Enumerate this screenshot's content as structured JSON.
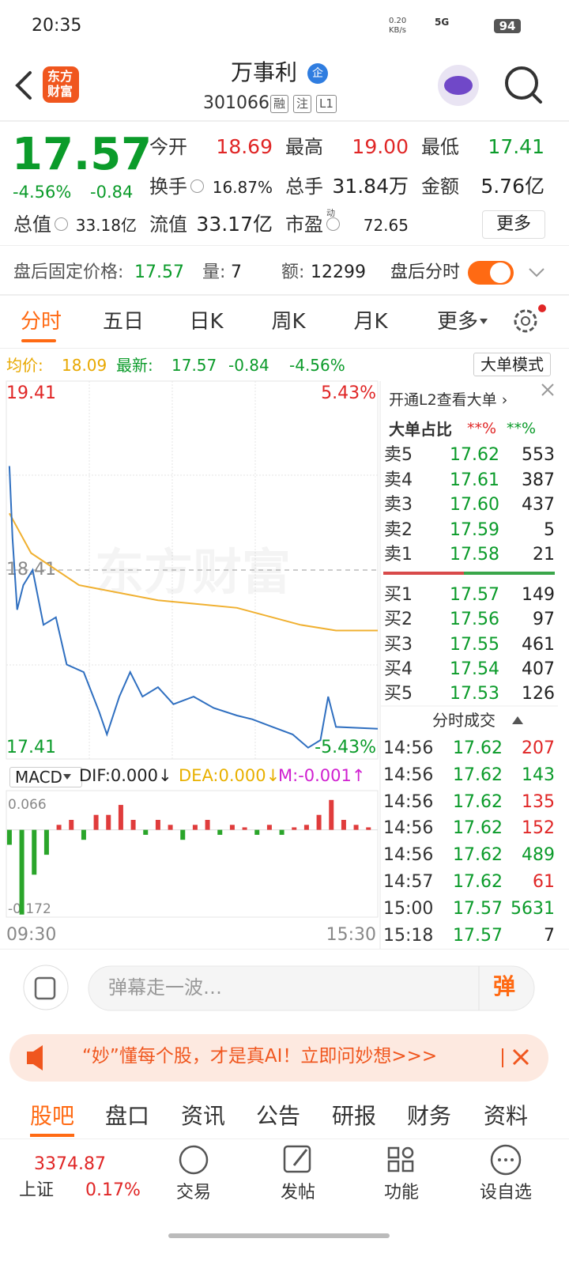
{
  "status_bar": {
    "time": "20:35",
    "net_speed": "0.20",
    "net_unit": "KB/s",
    "network": "5G",
    "battery": "94"
  },
  "header": {
    "logo_top": "东方",
    "logo_bottom": "财富",
    "title": "万事利",
    "badge": "企",
    "code": "301066",
    "tags": [
      "融",
      "注",
      "L1"
    ]
  },
  "quote": {
    "price": "17.57",
    "change_pct": "-4.56%",
    "change": "-0.84",
    "stats": [
      [
        {
          "label": "今开",
          "value": "18.69",
          "color": "#e02626",
          "info_icon": false
        },
        {
          "label": "最高",
          "value": "19.00",
          "color": "#e02626",
          "info_icon": false
        },
        {
          "label": "最低",
          "value": "17.41",
          "color": "#0b9b2a",
          "info_icon": false
        }
      ],
      [
        {
          "label": "换手",
          "value": "16.87%",
          "color": "#222222",
          "info_icon": true
        },
        {
          "label": "总手",
          "value": "31.84万",
          "color": "#222222",
          "info_icon": false
        },
        {
          "label": "金额",
          "value": "5.76亿",
          "color": "#222222",
          "info_icon": false
        }
      ],
      [
        {
          "label": "总值",
          "value": "33.18亿",
          "color": "#222222",
          "info_icon": true
        },
        {
          "label": "流值",
          "value": "33.17亿",
          "color": "#222222",
          "info_icon": false
        },
        {
          "label": "市盈",
          "sup": "动",
          "value": "72.65",
          "color": "#222222",
          "info_icon": true
        }
      ]
    ],
    "more": "更多"
  },
  "after_hours": {
    "label": "盘后固定价格:",
    "price": "17.57",
    "vol_label": "量:",
    "vol": "7",
    "amt_label": "额:",
    "amt": "12299",
    "toggle_label": "盘后分时"
  },
  "tabs": {
    "items": [
      "分时",
      "五日",
      "日K",
      "周K",
      "月K",
      "更多"
    ],
    "active": 0
  },
  "info_line": {
    "avg_label": "均价:",
    "avg": "18.09",
    "latest_label": "最新:",
    "latest": "17.57",
    "change": "-0.84",
    "change_pct": "-4.56%",
    "mode_button": "大单模式"
  },
  "intraday": {
    "watermark": "东方财富",
    "ylim": [
      17.41,
      19.41
    ],
    "yticks": [
      19.41,
      18.41,
      17.41
    ],
    "pct_top": "5.43%",
    "pct_bottom": "-5.43%",
    "xlim": [
      0,
      240
    ],
    "xticks": [
      {
        "value": 0,
        "label": "09:30"
      },
      {
        "value": 240,
        "label": "15:30"
      }
    ],
    "price": {
      "color": "#2f6fc0",
      "x": [
        2,
        4,
        7,
        11,
        17,
        24,
        32,
        39,
        50,
        60,
        65,
        73,
        80,
        88,
        98,
        108,
        121,
        134,
        149,
        159,
        172,
        185,
        195,
        203,
        208,
        213,
        240
      ],
      "values": [
        18.96,
        18.58,
        18.2,
        18.33,
        18.41,
        18.12,
        18.16,
        17.91,
        17.87,
        17.66,
        17.54,
        17.74,
        17.87,
        17.74,
        17.79,
        17.7,
        17.74,
        17.68,
        17.64,
        17.62,
        17.58,
        17.54,
        17.47,
        17.51,
        17.74,
        17.58,
        17.57
      ]
    },
    "avg": {
      "color": "#f0b030",
      "x": [
        2,
        16,
        47,
        98,
        149,
        190,
        213,
        240
      ],
      "values": [
        18.71,
        18.5,
        18.33,
        18.25,
        18.21,
        18.12,
        18.09,
        18.09
      ]
    }
  },
  "macd": {
    "selector": "MACD",
    "dif": "DIF:0.000↓",
    "dea": "DEA:0.000↓",
    "m": "M:-0.001↑",
    "ylim": [
      -0.172,
      0.066
    ],
    "yticks": [
      0.066,
      -0.172
    ],
    "x": [
      2,
      10,
      18,
      26,
      34,
      42,
      50,
      58,
      66,
      74,
      82,
      90,
      98,
      106,
      114,
      122,
      130,
      138,
      146,
      154,
      162,
      170,
      178,
      186,
      194,
      202,
      210,
      218,
      226,
      234
    ],
    "values": [
      -0.03,
      -0.17,
      -0.09,
      -0.05,
      0.01,
      0.02,
      -0.02,
      0.03,
      0.03,
      0.05,
      0.02,
      -0.01,
      0.02,
      0.01,
      -0.02,
      0.01,
      0.02,
      -0.01,
      0.01,
      0.005,
      -0.01,
      0.01,
      -0.01,
      0.005,
      0.01,
      0.03,
      0.06,
      0.02,
      0.01,
      0.005
    ],
    "up_color": "#e03c3c",
    "down_color": "#2aa52a"
  },
  "order_book": {
    "l2_link": "开通L2查看大单 ›",
    "ratio_label": "大单占比",
    "ratio_sell": "**%",
    "ratio_buy": "**%",
    "asks": [
      {
        "label": "卖5",
        "price": "17.62",
        "volume": "553"
      },
      {
        "label": "卖4",
        "price": "17.61",
        "volume": "387"
      },
      {
        "label": "卖3",
        "price": "17.60",
        "volume": "437"
      },
      {
        "label": "卖2",
        "price": "17.59",
        "volume": "5"
      },
      {
        "label": "卖1",
        "price": "17.58",
        "volume": "21"
      }
    ],
    "bids": [
      {
        "label": "买1",
        "price": "17.57",
        "volume": "149"
      },
      {
        "label": "买2",
        "price": "17.56",
        "volume": "97"
      },
      {
        "label": "买3",
        "price": "17.55",
        "volume": "461"
      },
      {
        "label": "买4",
        "price": "17.54",
        "volume": "407"
      },
      {
        "label": "买5",
        "price": "17.53",
        "volume": "126"
      }
    ]
  },
  "trades": {
    "title": "分时成交",
    "rows": [
      {
        "time": "14:56",
        "price": "17.62",
        "volume": "207",
        "color": "#e02626"
      },
      {
        "time": "14:56",
        "price": "17.62",
        "volume": "143",
        "color": "#0b9b2a"
      },
      {
        "time": "14:56",
        "price": "17.62",
        "volume": "135",
        "color": "#e02626"
      },
      {
        "time": "14:56",
        "price": "17.62",
        "volume": "152",
        "color": "#e02626"
      },
      {
        "time": "14:56",
        "price": "17.62",
        "volume": "489",
        "color": "#0b9b2a"
      },
      {
        "time": "14:57",
        "price": "17.62",
        "volume": "61",
        "color": "#e02626"
      },
      {
        "time": "15:00",
        "price": "17.57",
        "volume": "5631",
        "color": "#0b9b2a"
      },
      {
        "time": "15:18",
        "price": "17.57",
        "volume": "7",
        "color": "#222222"
      }
    ]
  },
  "comment_bar": {
    "placeholder": "弹幕走一波…",
    "button": "弹"
  },
  "banner": {
    "text": "“妙”懂每个股，才是真AI！立即问妙想>>>"
  },
  "sub_tabs": {
    "items": [
      "股吧",
      "盘口",
      "资讯",
      "公告",
      "研报",
      "财务",
      "资料"
    ],
    "active": 0
  },
  "bottom_nav": {
    "index_value": "3374.87",
    "index_name": "上证",
    "index_change": "0.17%",
    "items": [
      "交易",
      "发帖",
      "功能",
      "设自选"
    ]
  }
}
